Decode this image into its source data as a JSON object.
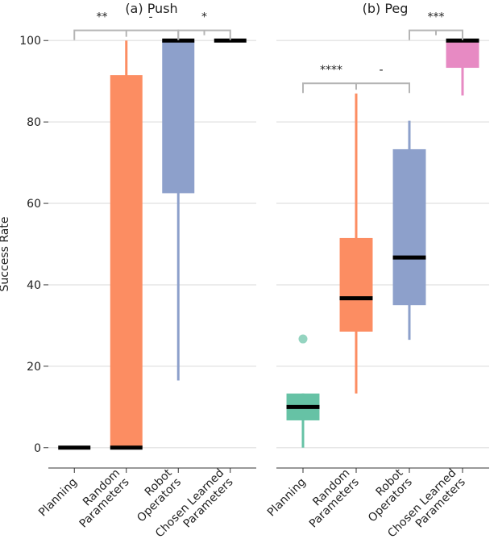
{
  "chart_data": [
    {
      "type": "box",
      "title": "(a) Push",
      "ylabel": "Success Rate",
      "ylim": [
        -5,
        105
      ],
      "yticks": [
        0,
        20,
        40,
        60,
        80,
        100
      ],
      "grid": true,
      "categories": [
        "Planning",
        "Random\nParameters",
        "Robot\nOperators",
        "Chosen Learned\nParameters"
      ],
      "colors": [
        "#66c2a5",
        "#fc8d62",
        "#8da0cb",
        "#e78ac3"
      ],
      "boxes": [
        {
          "min": 0,
          "q1": 0,
          "median": 0,
          "q3": 0,
          "max": 0,
          "outliers": []
        },
        {
          "min": 0,
          "q1": 0,
          "median": 0,
          "q3": 91.5,
          "max": 100,
          "outliers": []
        },
        {
          "min": 16.5,
          "q1": 62.5,
          "median": 100,
          "q3": 100,
          "max": 100,
          "outliers": []
        },
        {
          "min": 100,
          "q1": 100,
          "median": 100,
          "q3": 100,
          "max": 100,
          "outliers": []
        }
      ],
      "significance": [
        {
          "from": 0,
          "to": 2,
          "y": 102.5,
          "labels": [
            "**",
            "-"
          ]
        },
        {
          "from": 2,
          "to": 3,
          "y": 102.5,
          "labels": [
            "*"
          ]
        }
      ]
    },
    {
      "type": "box",
      "title": "(b) Peg",
      "ylim": [
        -5,
        105
      ],
      "yticks": [
        0,
        20,
        40,
        60,
        80,
        100
      ],
      "grid": true,
      "categories": [
        "Planning",
        "Random\nParameters",
        "Robot\nOperators",
        "Chosen Learned\nParameters"
      ],
      "colors": [
        "#66c2a5",
        "#fc8d62",
        "#8da0cb",
        "#e78ac3"
      ],
      "boxes": [
        {
          "min": 0,
          "q1": 6.7,
          "median": 10,
          "q3": 13.3,
          "max": 13.3,
          "outliers": [
            26.7
          ]
        },
        {
          "min": 13.3,
          "q1": 28.5,
          "median": 36.7,
          "q3": 51.5,
          "max": 87,
          "outliers": []
        },
        {
          "min": 26.5,
          "q1": 35,
          "median": 46.7,
          "q3": 73.3,
          "max": 80.3,
          "outliers": []
        },
        {
          "min": 86.5,
          "q1": 93.3,
          "median": 100,
          "q3": 100,
          "max": 100,
          "outliers": []
        }
      ],
      "significance": [
        {
          "from": 0,
          "to": 2,
          "y": 89.5,
          "labels": [
            "****",
            "-"
          ]
        },
        {
          "from": 2,
          "to": 3,
          "y": 102.5,
          "labels": [
            "***"
          ]
        }
      ]
    }
  ]
}
